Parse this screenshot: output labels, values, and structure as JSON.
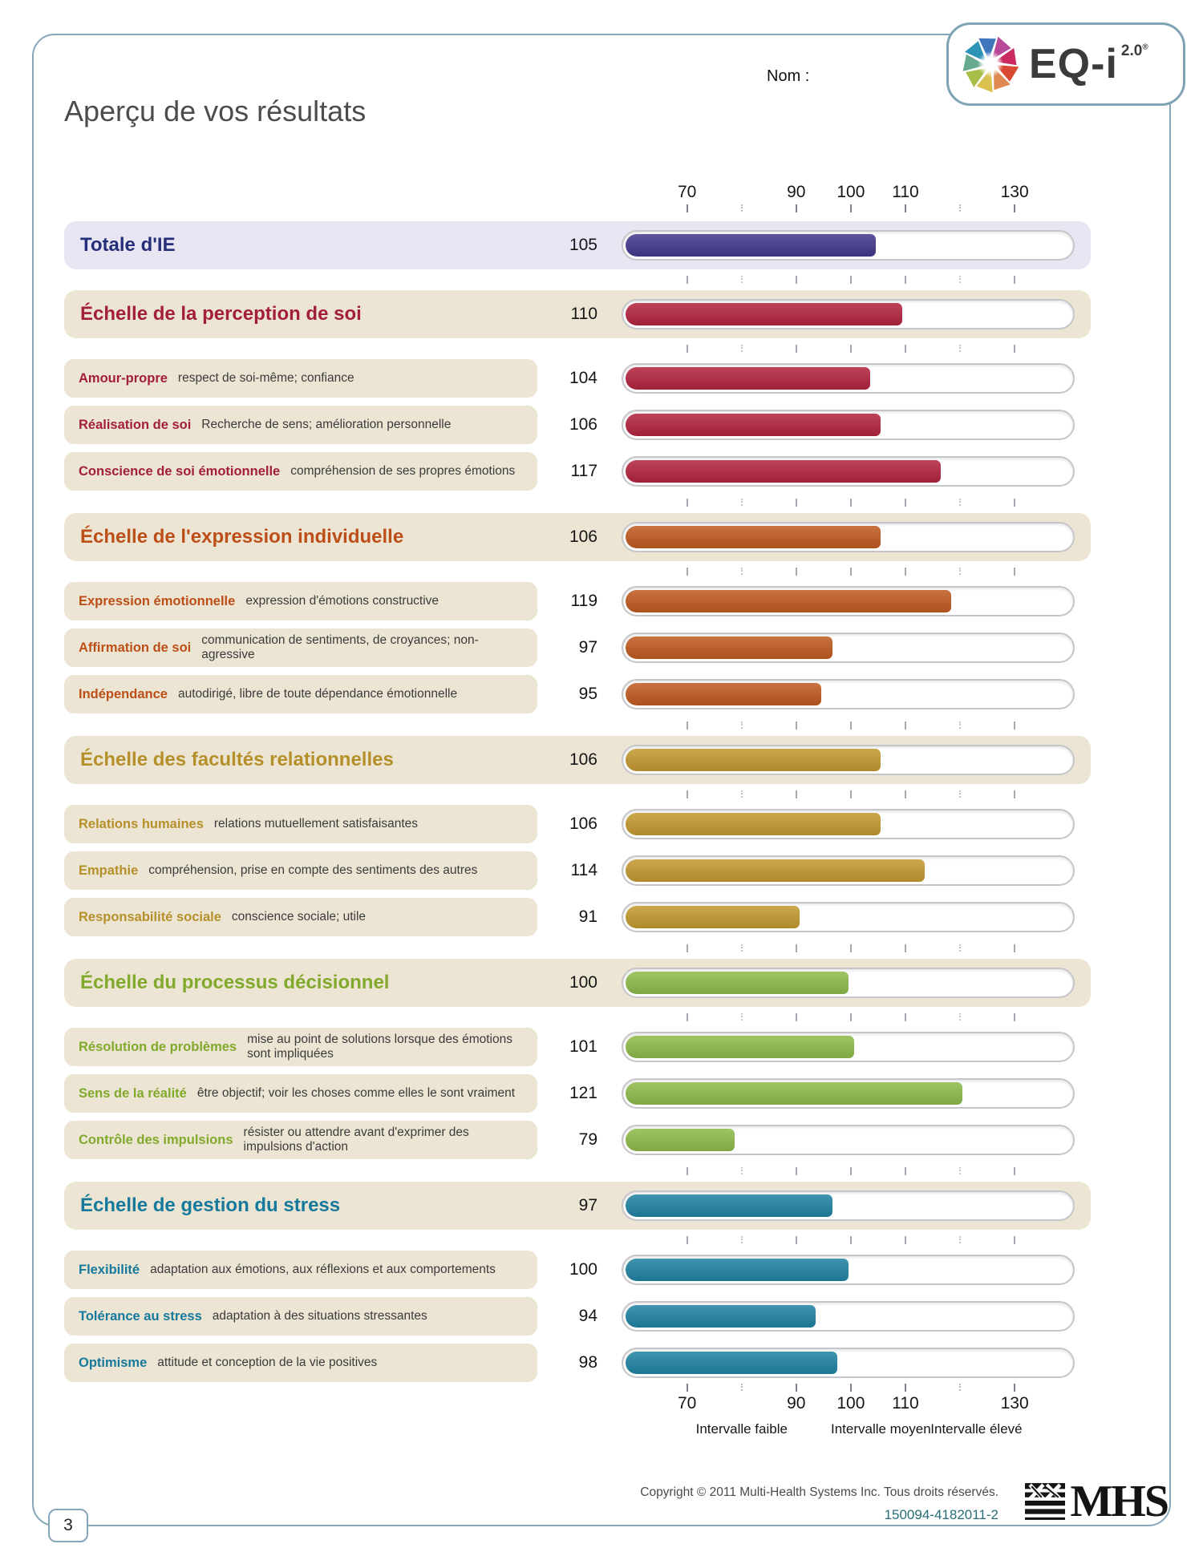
{
  "page": {
    "nom_label": "Nom :",
    "title": "Aperçu de vos résultats",
    "page_number": "3",
    "logo": {
      "text": "EQ-i",
      "version": "2.0",
      "registered": "®"
    },
    "footer": {
      "copyright": "Copyright © 2011 Multi-Health Systems Inc. Tous droits réservés.",
      "code": "150094-4182011-2",
      "brand": "MHS"
    }
  },
  "chart_data": {
    "type": "bar",
    "orientation": "horizontal",
    "title": "Aperçu de vos résultats",
    "axis": {
      "track_min": 58,
      "track_max": 141,
      "ticks": [
        {
          "v": 70,
          "label": "70"
        },
        {
          "v": 80,
          "label": ""
        },
        {
          "v": 90,
          "label": "90"
        },
        {
          "v": 100,
          "label": "100"
        },
        {
          "v": 110,
          "label": "110"
        },
        {
          "v": 120,
          "label": ""
        },
        {
          "v": 130,
          "label": "130"
        }
      ]
    },
    "legend": [
      {
        "label": "Intervalle faible",
        "pos": 80
      },
      {
        "label": "Intervalle moyen",
        "pos": 105.5
      },
      {
        "label": "Intervalle élevé",
        "pos": 123
      }
    ],
    "rows": [
      {
        "id": "total-ie",
        "type": "total",
        "label": "Totale d'IE",
        "desc": "",
        "score": 105,
        "bar_color": "#423a8c",
        "title_color": "#252e78",
        "band_color": "#e8e6f3",
        "ticks_after": true
      },
      {
        "id": "perception",
        "type": "section",
        "label": "Échelle de la perception de soi",
        "desc": "",
        "score": 110,
        "bar_color": "#b2243f",
        "title_color": "#a31f36",
        "band_color": "#ece5d4",
        "ticks_after": true
      },
      {
        "id": "amour-propre",
        "type": "sub",
        "label": "Amour-propre",
        "desc": "respect de soi-même; confiance",
        "score": 104,
        "bar_color": "#b2243f",
        "title_color": "#a31f36",
        "band_color": "#ece5d4",
        "ticks_after": false
      },
      {
        "id": "realisation-de-soi",
        "type": "sub",
        "label": "Réalisation de soi",
        "desc": "Recherche de sens; amélioration personnelle",
        "score": 106,
        "bar_color": "#b2243f",
        "title_color": "#a31f36",
        "band_color": "#ece5d4",
        "ticks_after": false
      },
      {
        "id": "conscience-de-soi",
        "type": "sub",
        "label": "Conscience de soi émotionnelle",
        "desc": "compréhension de ses propres émotions",
        "score": 117,
        "bar_color": "#b2243f",
        "title_color": "#a31f36",
        "band_color": "#ece5d4",
        "ticks_after": true
      },
      {
        "id": "expression",
        "type": "section",
        "label": "Échelle de l'expression individuelle",
        "desc": "",
        "score": 106,
        "bar_color": "#c05a20",
        "title_color": "#bc4e17",
        "band_color": "#ece5d4",
        "ticks_after": true
      },
      {
        "id": "expression-emotionnelle",
        "type": "sub",
        "label": "Expression émotionnelle",
        "desc": "expression d'émotions constructive",
        "score": 119,
        "bar_color": "#c05a20",
        "title_color": "#bc4e17",
        "band_color": "#ece5d4",
        "ticks_after": false
      },
      {
        "id": "affirmation-de-soi",
        "type": "sub",
        "label": "Affirmation de soi",
        "desc": "communication de sentiments, de croyances; non-agressive",
        "score": 97,
        "bar_color": "#c05a20",
        "title_color": "#bc4e17",
        "band_color": "#ece5d4",
        "ticks_after": false
      },
      {
        "id": "independance",
        "type": "sub",
        "label": "Indépendance",
        "desc": "autodirigé, libre de toute dépendance émotionnelle",
        "score": 95,
        "bar_color": "#c05a20",
        "title_color": "#bc4e17",
        "band_color": "#ece5d4",
        "ticks_after": true
      },
      {
        "id": "relations",
        "type": "section",
        "label": "Échelle des facultés relationnelles",
        "desc": "",
        "score": 106,
        "bar_color": "#c3992f",
        "title_color": "#b5902a",
        "band_color": "#ece5d4",
        "ticks_after": true
      },
      {
        "id": "relations-humaines",
        "type": "sub",
        "label": "Relations humaines",
        "desc": "relations mutuellement satisfaisantes",
        "score": 106,
        "bar_color": "#c3992f",
        "title_color": "#b5902a",
        "band_color": "#ece5d4",
        "ticks_after": false
      },
      {
        "id": "empathie",
        "type": "sub",
        "label": "Empathie",
        "desc": "compréhension, prise en compte des sentiments des autres",
        "score": 114,
        "bar_color": "#c3992f",
        "title_color": "#b5902a",
        "band_color": "#ece5d4",
        "ticks_after": false
      },
      {
        "id": "responsabilite-sociale",
        "type": "sub",
        "label": "Responsabilité sociale",
        "desc": "conscience sociale; utile",
        "score": 91,
        "bar_color": "#c3992f",
        "title_color": "#b5902a",
        "band_color": "#ece5d4",
        "ticks_after": true
      },
      {
        "id": "decision",
        "type": "section",
        "label": "Échelle du processus décisionnel",
        "desc": "",
        "score": 100,
        "bar_color": "#8eba4b",
        "title_color": "#81a92b",
        "band_color": "#ece5d4",
        "ticks_after": true
      },
      {
        "id": "resolution-problemes",
        "type": "sub",
        "label": "Résolution de problèmes",
        "desc": "mise au point de solutions lorsque des émotions sont impliquées",
        "score": 101,
        "bar_color": "#8eba4b",
        "title_color": "#81a92b",
        "band_color": "#ece5d4",
        "ticks_after": false
      },
      {
        "id": "sens-realite",
        "type": "sub",
        "label": "Sens de la réalité",
        "desc": "être objectif; voir les choses comme elles le sont vraiment",
        "score": 121,
        "bar_color": "#8eba4b",
        "title_color": "#81a92b",
        "band_color": "#ece5d4",
        "ticks_after": false
      },
      {
        "id": "controle-impulsions",
        "type": "sub",
        "label": "Contrôle des impulsions",
        "desc": "résister ou attendre avant d'exprimer des impulsions d'action",
        "score": 79,
        "bar_color": "#8eba4b",
        "title_color": "#81a92b",
        "band_color": "#ece5d4",
        "ticks_after": true
      },
      {
        "id": "stress",
        "type": "section",
        "label": "Échelle de gestion du stress",
        "desc": "",
        "score": 97,
        "bar_color": "#2083a2",
        "title_color": "#15799c",
        "band_color": "#ece5d4",
        "ticks_after": true
      },
      {
        "id": "flexibilite",
        "type": "sub",
        "label": "Flexibilité",
        "desc": "adaptation aux émotions, aux réflexions et aux comportements",
        "score": 100,
        "bar_color": "#2083a2",
        "title_color": "#15799c",
        "band_color": "#ece5d4",
        "ticks_after": false
      },
      {
        "id": "tolerance-stress",
        "type": "sub",
        "label": "Tolérance au stress",
        "desc": "adaptation à des situations stressantes",
        "score": 94,
        "bar_color": "#2083a2",
        "title_color": "#15799c",
        "band_color": "#ece5d4",
        "ticks_after": false
      },
      {
        "id": "optimisme",
        "type": "sub",
        "label": "Optimisme",
        "desc": "attitude et conception de la vie positives",
        "score": 98,
        "bar_color": "#2083a2",
        "title_color": "#15799c",
        "band_color": "#ece5d4",
        "ticks_after": false
      }
    ]
  }
}
